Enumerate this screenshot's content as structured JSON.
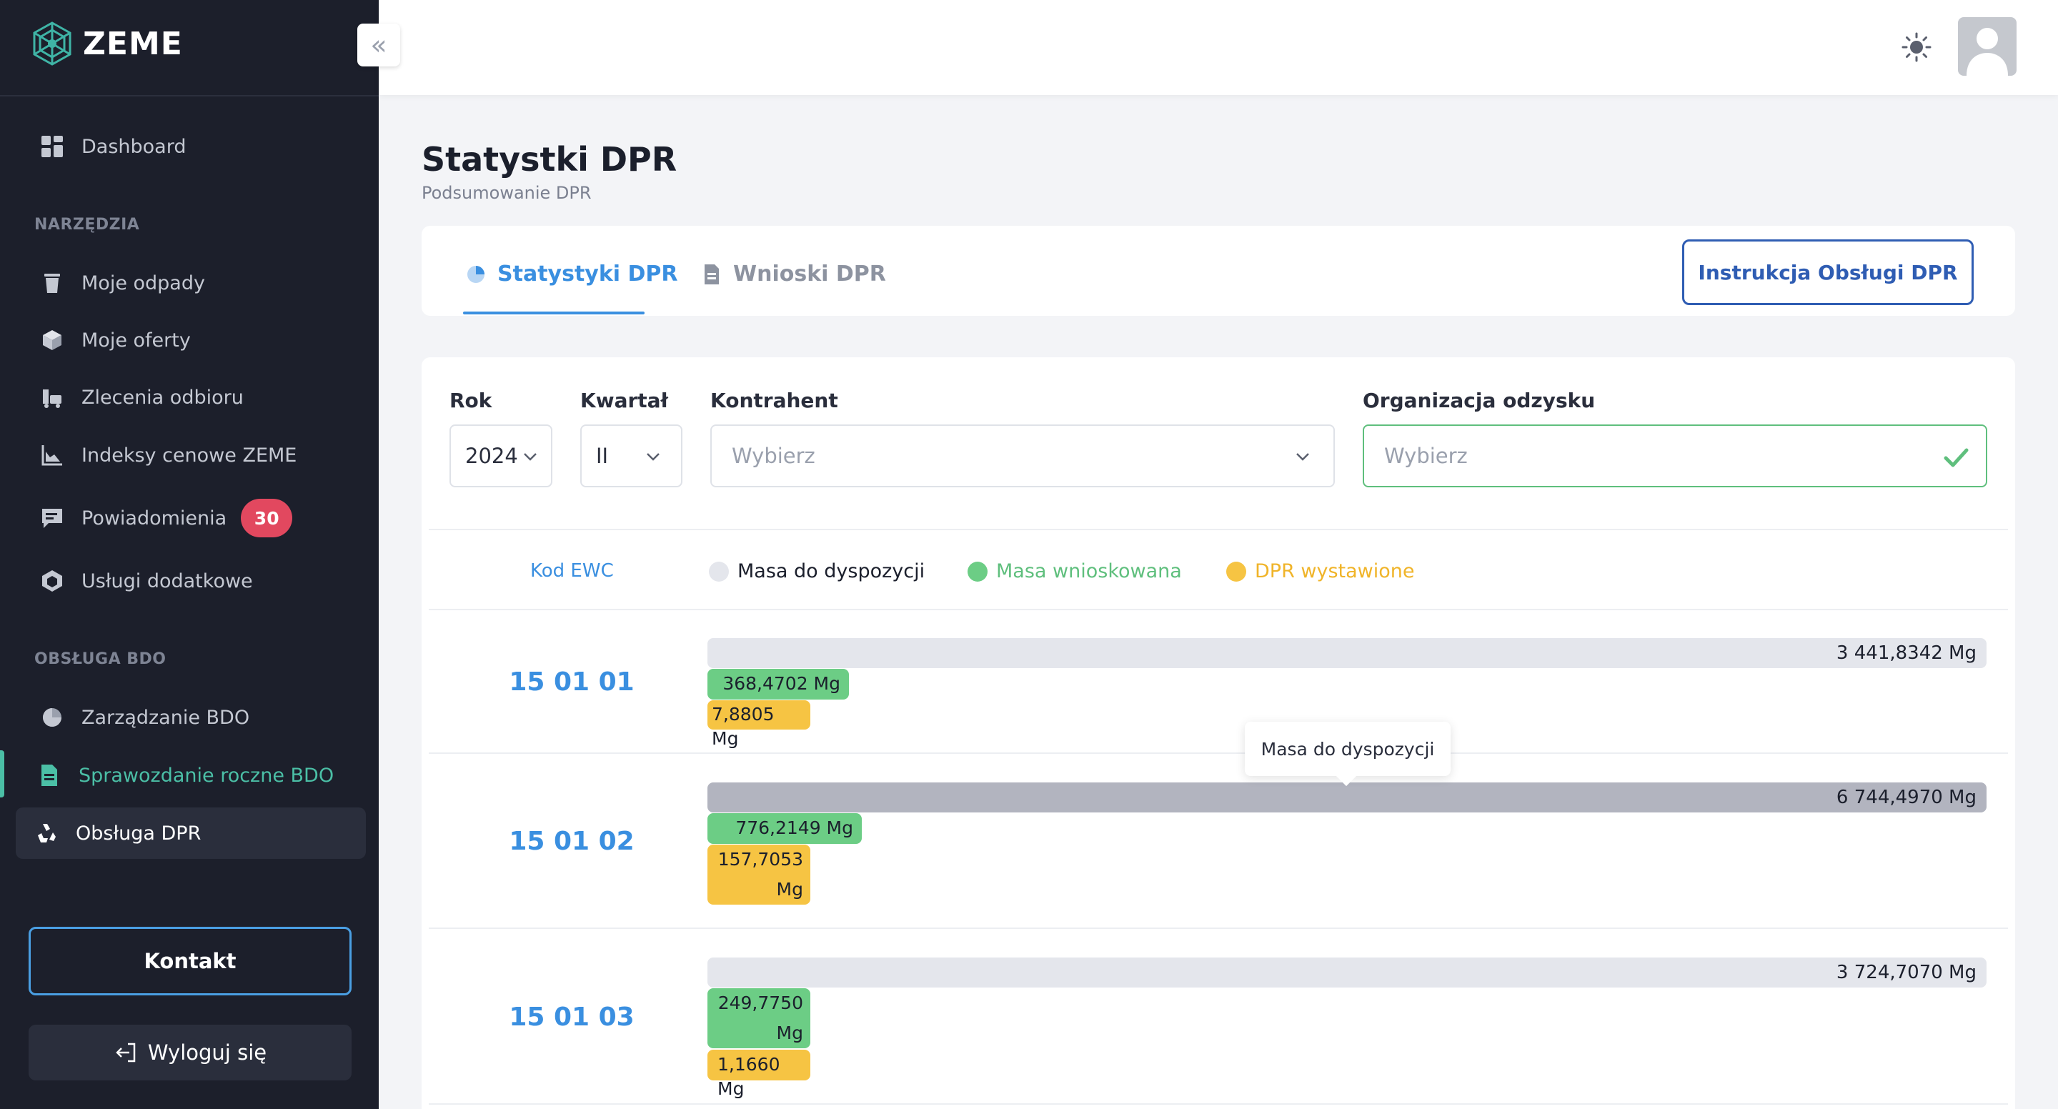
{
  "brand": {
    "name": "ZEME"
  },
  "sidebar": {
    "dashboard": "Dashboard",
    "section_tools": "NARZĘDZIA",
    "tools": [
      {
        "label": "Moje odpady",
        "icon": "trash-icon"
      },
      {
        "label": "Moje oferty",
        "icon": "box-icon"
      },
      {
        "label": "Zlecenia odbioru",
        "icon": "truck-icon"
      },
      {
        "label": "Indeksy cenowe ZEME",
        "icon": "chart-icon"
      },
      {
        "label": "Powiadomienia",
        "icon": "message-icon",
        "badge": "30"
      },
      {
        "label": "Usługi dodatkowe",
        "icon": "cube-icon"
      }
    ],
    "section_bdo": "OBSŁUGA BDO",
    "bdo": [
      {
        "label": "Zarządzanie BDO",
        "icon": "pie-icon"
      },
      {
        "label": "Sprawozdanie roczne BDO",
        "icon": "document-icon"
      },
      {
        "label": "Obsługa DPR",
        "icon": "recycle-icon"
      }
    ],
    "contact_label": "Kontakt",
    "logout_label": "Wyloguj się"
  },
  "page": {
    "title": "Statystki DPR",
    "subtitle": "Podsumowanie DPR"
  },
  "tabs": [
    {
      "label": "Statystyki DPR",
      "active": true
    },
    {
      "label": "Wnioski DPR",
      "active": false
    }
  ],
  "instruction_button": "Instrukcja Obsługi DPR",
  "filters": {
    "year": {
      "label": "Rok",
      "value": "2024"
    },
    "quarter": {
      "label": "Kwartał",
      "value": "II"
    },
    "contractor": {
      "label": "Kontrahent",
      "placeholder": "Wybierz"
    },
    "organization": {
      "label": "Organizacja odzysku",
      "placeholder": "Wybierz"
    }
  },
  "legend": {
    "code_header": "Kod EWC",
    "available": "Masa do dyspozycji",
    "requested": "Masa wnioskowana",
    "issued": "DPR wystawione"
  },
  "colors": {
    "available": "#e4e6ec",
    "requested": "#6ccd85",
    "issued": "#f6c443",
    "accent": "#3a8fe0"
  },
  "rows": [
    {
      "code": "15 01 01",
      "available": "3 441,8342 Mg",
      "requested": "368,4702 Mg",
      "issued": "7,8805 Mg"
    },
    {
      "code": "15 01 02",
      "available": "6 744,4970 Mg",
      "requested": "776,2149 Mg",
      "issued_l1": "157,7053",
      "issued_l2": "Mg"
    },
    {
      "code": "15 01 03",
      "available": "3 724,7070 Mg",
      "requested_l1": "249,7750",
      "requested_l2": "Mg",
      "issued": "1,1660 Mg"
    }
  ],
  "tooltip": "Masa do dyspozycji"
}
